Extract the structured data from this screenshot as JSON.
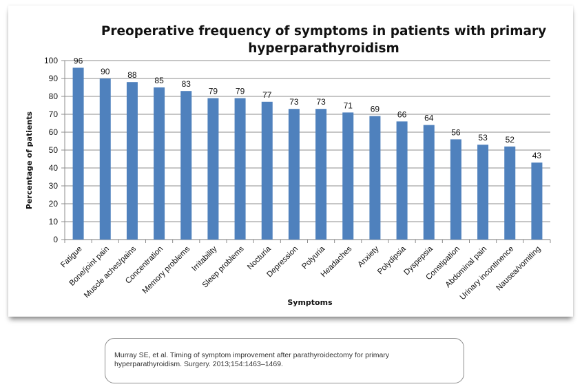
{
  "chart_data": {
    "type": "bar",
    "title_lines": [
      "Preoperative frequency of symptoms in patients with primary",
      "hyperparathyroidism"
    ],
    "xlabel": "Symptoms",
    "ylabel": "Percentage of patients",
    "ylim": [
      0,
      100
    ],
    "yticks": [
      0,
      10,
      20,
      30,
      40,
      50,
      60,
      70,
      80,
      90,
      100
    ],
    "grid": true,
    "categories": [
      "Fatigue",
      "Bone/joint pain",
      "Muscle aches/pains",
      "Concentration",
      "Memory problems",
      "Irritability",
      "Sleep problems",
      "Nocturia",
      "Depression",
      "Polyuria",
      "Headaches",
      "Anxiety",
      "Polydipsia",
      "Dyspepsia",
      "Constipation",
      "Abdominal pain",
      "Urinary incontinence",
      "Nausea/vomiting"
    ],
    "values": [
      96,
      90,
      88,
      85,
      83,
      79,
      79,
      77,
      73,
      73,
      71,
      69,
      66,
      64,
      56,
      53,
      52,
      43
    ],
    "bar_color": "#4f81bd",
    "grid_color": "#8c8c8c"
  },
  "citation": {
    "line1": "Murray SE, et al. Timing of symptom improvement after parathyroidectomy for primary",
    "line2": "hyperparathyroidism. Surgery. 2013;154:1463–1469."
  }
}
